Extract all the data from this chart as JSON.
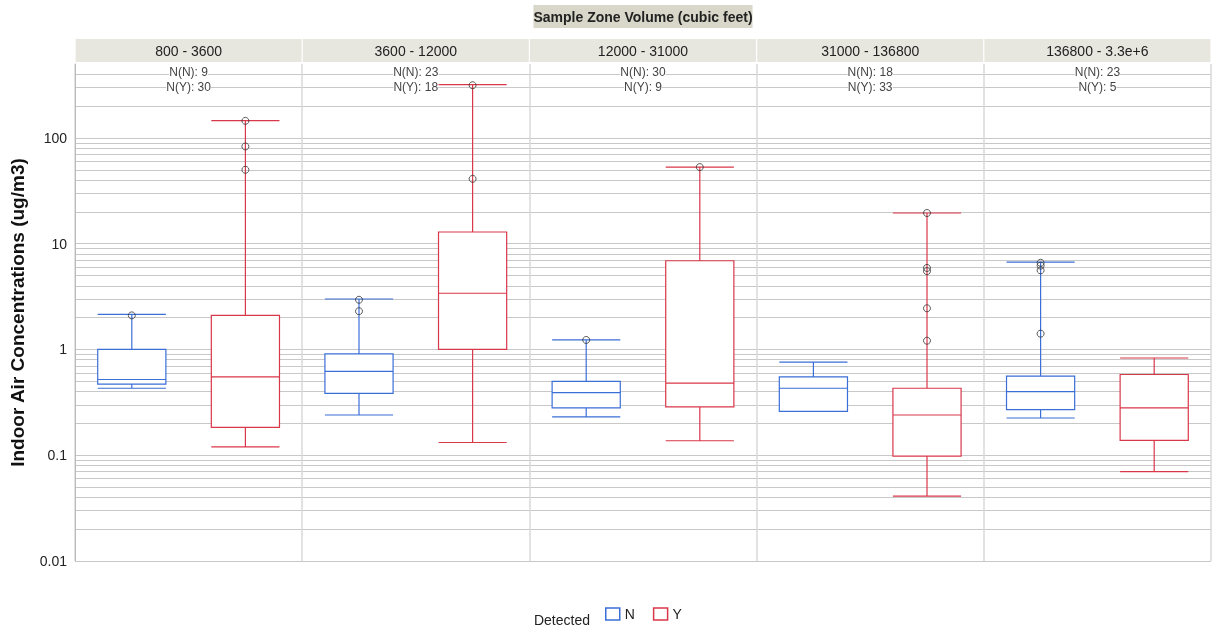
{
  "chart_data": {
    "type": "box",
    "xlabel": "Sample Zone Volume (cubic feet)",
    "ylabel": "Indoor Air Concentrations (ug/m3)",
    "legend_title": "Detected",
    "legend": "bottom",
    "grid": true,
    "log": "y",
    "categories": [
      "800 - 3600",
      "3600 - 12000",
      "12000 - 31000",
      "31000 - 136800",
      "136800 - 3.3e+6"
    ],
    "ylim": [
      0.01,
      500
    ],
    "yticks": [
      0.01,
      {
        "value": 0.02,
        "label": null
      },
      {
        "value": 0.03,
        "label": null
      },
      {
        "value": 0.04,
        "label": null
      },
      {
        "value": 0.05,
        "label": null
      },
      {
        "value": 0.06,
        "label": null
      },
      {
        "value": 0.07,
        "label": null
      },
      {
        "value": 0.08,
        "label": null
      },
      {
        "value": 0.09,
        "label": null
      },
      0.1,
      {
        "value": 0.2,
        "label": null
      },
      {
        "value": 0.3,
        "label": null
      },
      {
        "value": 0.4,
        "label": null
      },
      {
        "value": 0.5,
        "label": null
      },
      {
        "value": 0.6,
        "label": null
      },
      {
        "value": 0.7,
        "label": null
      },
      {
        "value": 0.8,
        "label": null
      },
      {
        "value": 0.9,
        "label": null
      },
      1,
      {
        "value": 2,
        "label": null
      },
      {
        "value": 3,
        "label": null
      },
      {
        "value": 4,
        "label": null
      },
      {
        "value": 5,
        "label": null
      },
      {
        "value": 6,
        "label": null
      },
      {
        "value": 7,
        "label": null
      },
      {
        "value": 8,
        "label": null
      },
      {
        "value": 9,
        "label": null
      },
      10,
      {
        "value": 20,
        "label": null
      },
      {
        "value": 30,
        "label": null
      },
      {
        "value": 40,
        "label": null
      },
      {
        "value": 50,
        "label": null
      },
      {
        "value": 60,
        "label": null
      },
      {
        "value": 70,
        "label": null
      },
      {
        "value": 80,
        "label": null
      },
      {
        "value": 90,
        "label": null
      },
      100,
      {
        "value": 200,
        "label": null
      },
      {
        "value": 300,
        "label": null
      },
      {
        "value": 400,
        "label": null
      }
    ],
    "series": [
      {
        "name": "N",
        "color": "#3a6fd8",
        "boxes": [
          {
            "low": 0.43,
            "q1": 0.47,
            "median": 0.52,
            "q3": 1.0,
            "high": 2.15,
            "outliers": [
              2.1
            ]
          },
          {
            "low": 0.24,
            "q1": 0.385,
            "median": 0.62,
            "q3": 0.91,
            "high": 3.0,
            "outliers": [
              2.95,
              2.3
            ]
          },
          {
            "low": 0.23,
            "q1": 0.28,
            "median": 0.39,
            "q3": 0.5,
            "high": 1.23,
            "outliers": [
              1.23
            ]
          },
          {
            "low": 0.26,
            "q1": 0.26,
            "median": 0.43,
            "q3": 0.55,
            "high": 0.76
          },
          {
            "low": 0.225,
            "q1": 0.27,
            "median": 0.4,
            "q3": 0.56,
            "high": 6.7,
            "outliers": [
              6.6,
              6.2,
              5.6,
              1.41
            ]
          }
        ]
      },
      {
        "name": "Y",
        "color": "#d9374a",
        "boxes": [
          {
            "low": 0.12,
            "q1": 0.183,
            "median": 0.55,
            "q3": 2.1,
            "high": 146,
            "outliers": [
              145,
              83,
              50
            ]
          },
          {
            "low": 0.132,
            "q1": 1.0,
            "median": 3.4,
            "q3": 12.9,
            "high": 319,
            "outliers": [
              315,
              41
            ]
          },
          {
            "low": 0.137,
            "q1": 0.286,
            "median": 0.48,
            "q3": 6.9,
            "high": 53,
            "outliers": [
              53
            ]
          },
          {
            "low": 0.041,
            "q1": 0.098,
            "median": 0.24,
            "q3": 0.43,
            "high": 19.5,
            "outliers": [
              19.5,
              5.9,
              5.5,
              2.45,
              1.21
            ]
          },
          {
            "low": 0.07,
            "q1": 0.138,
            "median": 0.28,
            "q3": 0.58,
            "high": 0.83
          }
        ]
      }
    ],
    "annotations": [
      "N(N): 9",
      "N(Y): 30",
      "N(N): 23",
      "N(Y): 18",
      "N(N): 30",
      "N(Y): 9",
      "N(N): 18",
      "N(Y): 33",
      "N(N): 23",
      "N(Y): 5"
    ]
  }
}
